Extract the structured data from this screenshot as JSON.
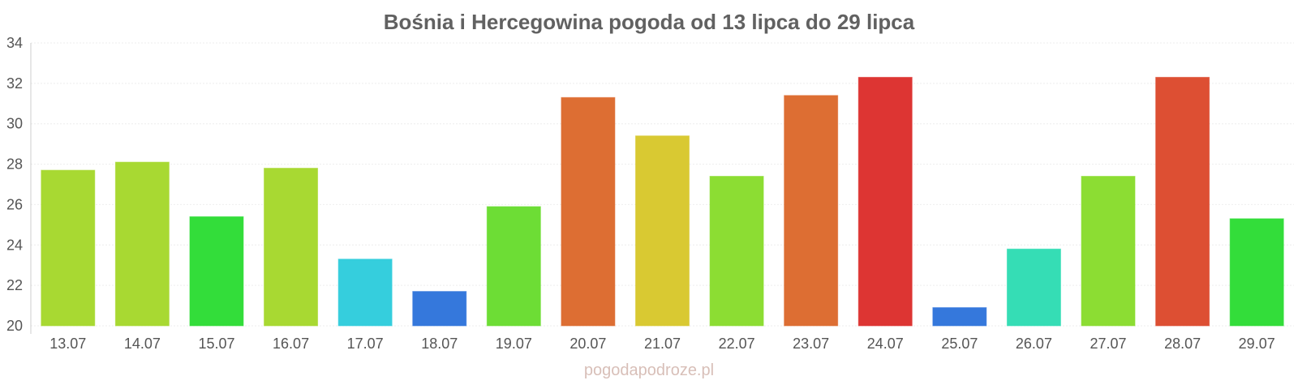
{
  "chart_data": {
    "type": "bar",
    "title": "Bośnia i Hercegowina pogoda od 13 lipca do 29 lipca",
    "xlabel": "",
    "ylabel": "",
    "ylim": [
      20,
      34
    ],
    "yticks": [
      20,
      22,
      24,
      26,
      28,
      30,
      32,
      34
    ],
    "grid": true,
    "categories": [
      "13.07",
      "14.07",
      "15.07",
      "16.07",
      "17.07",
      "18.07",
      "19.07",
      "20.07",
      "21.07",
      "22.07",
      "23.07",
      "24.07",
      "25.07",
      "26.07",
      "27.07",
      "28.07",
      "29.07"
    ],
    "values": [
      27.7,
      28.1,
      25.4,
      27.8,
      23.3,
      21.7,
      25.9,
      31.3,
      29.4,
      27.4,
      31.4,
      32.3,
      20.9,
      23.8,
      27.4,
      32.3,
      25.3
    ],
    "colors": [
      "#a8d932",
      "#a8d932",
      "#33dd3a",
      "#a8d932",
      "#35cedd",
      "#3578dc",
      "#6ddd35",
      "#dd6e33",
      "#d9c932",
      "#8cdd33",
      "#dd6e33",
      "#dd3533",
      "#3578dc",
      "#35ddb5",
      "#8cdd33",
      "#dd4f33",
      "#33dd3a"
    ]
  },
  "credit": "pogodapodroze.pl"
}
